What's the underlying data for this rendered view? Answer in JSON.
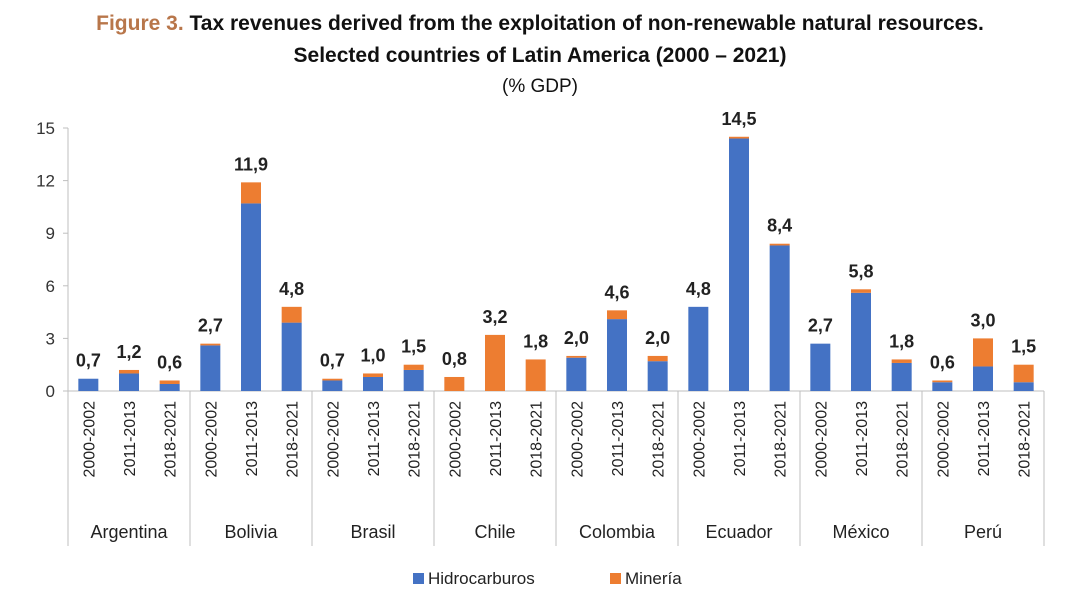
{
  "figure_label": "Figure 3.",
  "title_line1": "Tax revenues derived from the exploitation of non-renewable natural resources.",
  "title_line2": "Selected countries of Latin America (2000 – 2021)",
  "subtitle": "(% GDP)",
  "colors": {
    "hidrocarburos": "#4472c4",
    "mineria": "#ed7d31",
    "axis": "#bfbfbf"
  },
  "chart_data": {
    "type": "bar",
    "stacked": true,
    "ylim": [
      0,
      15
    ],
    "yticks": [
      "0",
      "3",
      "6",
      "9",
      "12",
      "15"
    ],
    "grid": false,
    "legend_position": "bottom",
    "groups": [
      "Argentina",
      "Bolivia",
      "Brasil",
      "Chile",
      "Colombia",
      "Ecuador",
      "México",
      "Perú"
    ],
    "periods": [
      "2000-2002",
      "2011-2013",
      "2018-2021"
    ],
    "series": [
      {
        "name": "Hidrocarburos",
        "values": [
          0.7,
          1.0,
          0.4,
          2.6,
          10.7,
          3.9,
          0.6,
          0.8,
          1.2,
          0.0,
          0.0,
          0.0,
          1.9,
          4.1,
          1.7,
          4.8,
          14.4,
          8.3,
          2.7,
          5.6,
          1.6,
          0.5,
          1.4,
          0.5
        ]
      },
      {
        "name": "Minería",
        "values": [
          0.0,
          0.2,
          0.2,
          0.1,
          1.2,
          0.9,
          0.1,
          0.2,
          0.3,
          0.8,
          3.2,
          1.8,
          0.1,
          0.5,
          0.3,
          0.0,
          0.1,
          0.1,
          0.0,
          0.2,
          0.2,
          0.1,
          1.6,
          1.0
        ]
      }
    ],
    "data_labels": [
      "0,7",
      "1,2",
      "0,6",
      "2,7",
      "11,9",
      "4,8",
      "0,7",
      "1,0",
      "1,5",
      "0,8",
      "3,2",
      "1,8",
      "2,0",
      "4,6",
      "2,0",
      "4,8",
      "14,5",
      "8,4",
      "2,7",
      "5,8",
      "1,8",
      "0,6",
      "3,0",
      "1,5"
    ]
  }
}
